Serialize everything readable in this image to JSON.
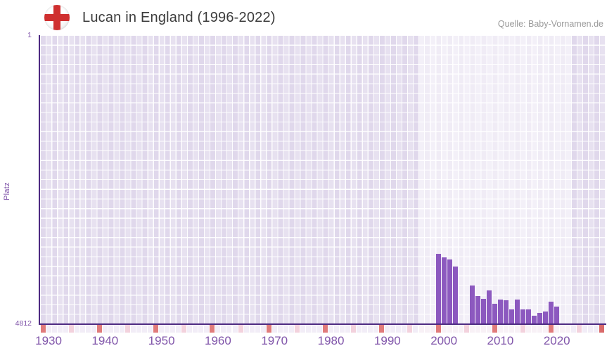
{
  "header": {
    "title": "Lucan in England (1996-2022)",
    "flag_icon": "england-flag-icon",
    "source": "Quelle: Baby-Vornamen.de"
  },
  "chart_data": {
    "type": "bar",
    "title": "Lucan in England (1996-2022)",
    "xlabel": "",
    "ylabel": "Platz",
    "legend": null,
    "grid": true,
    "y_axis": {
      "min": 1,
      "max": 4812,
      "inverted": true,
      "top_tick_label": "1",
      "bottom_tick_label": "4812"
    },
    "x_axis": {
      "start_year": 1929,
      "end_year": 2028,
      "tick_years": [
        1930,
        1940,
        1950,
        1960,
        1970,
        1980,
        1990,
        2000,
        2010,
        2020
      ]
    },
    "data_period_highlight": {
      "from_year": 1996,
      "to_year": 2022
    },
    "series": [
      {
        "name": "Platz",
        "points": [
          {
            "year": 1999,
            "rank": 3646
          },
          {
            "year": 2000,
            "rank": 3712
          },
          {
            "year": 2001,
            "rank": 3740
          },
          {
            "year": 2002,
            "rank": 3860
          },
          {
            "year": 2005,
            "rank": 4181
          },
          {
            "year": 2006,
            "rank": 4357
          },
          {
            "year": 2007,
            "rank": 4404
          },
          {
            "year": 2008,
            "rank": 4259
          },
          {
            "year": 2009,
            "rank": 4486
          },
          {
            "year": 2010,
            "rank": 4408
          },
          {
            "year": 2011,
            "rank": 4423
          },
          {
            "year": 2012,
            "rank": 4580
          },
          {
            "year": 2013,
            "rank": 4408
          },
          {
            "year": 2014,
            "rank": 4580
          },
          {
            "year": 2015,
            "rank": 4580
          },
          {
            "year": 2016,
            "rank": 4677
          },
          {
            "year": 2017,
            "rank": 4630
          },
          {
            "year": 2018,
            "rank": 4618
          },
          {
            "year": 2019,
            "rank": 4447
          },
          {
            "year": 2020,
            "rank": 4533
          }
        ]
      }
    ],
    "timeline_markers": {
      "decade_years": [
        1929,
        1939,
        1949,
        1959,
        1969,
        1979,
        1989,
        1999,
        2009,
        2019
      ],
      "mid_decade_years": [
        1934,
        1944,
        1954,
        1964,
        1974,
        1984,
        1994,
        2004,
        2014,
        2024
      ],
      "right_edge_year": 2028
    },
    "colors": {
      "bar": "#8c59bf",
      "axis": "#4e2b82",
      "tick_label": "#8055aa",
      "plot_background": "#e7e1f0",
      "highlight_overlay": "rgba(255,255,255,0.5)",
      "decade_marker": "#e07b7b",
      "mid_decade_marker": "#f3d2dd",
      "edge_marker": "#d96a6a",
      "strip_base_outside": "#f2edf7",
      "strip_base_inside": "#f8f1f6",
      "title_text": "#3c3c3c",
      "source_text": "#9a9a9a",
      "flag_cross": "#cf2f2f"
    }
  }
}
